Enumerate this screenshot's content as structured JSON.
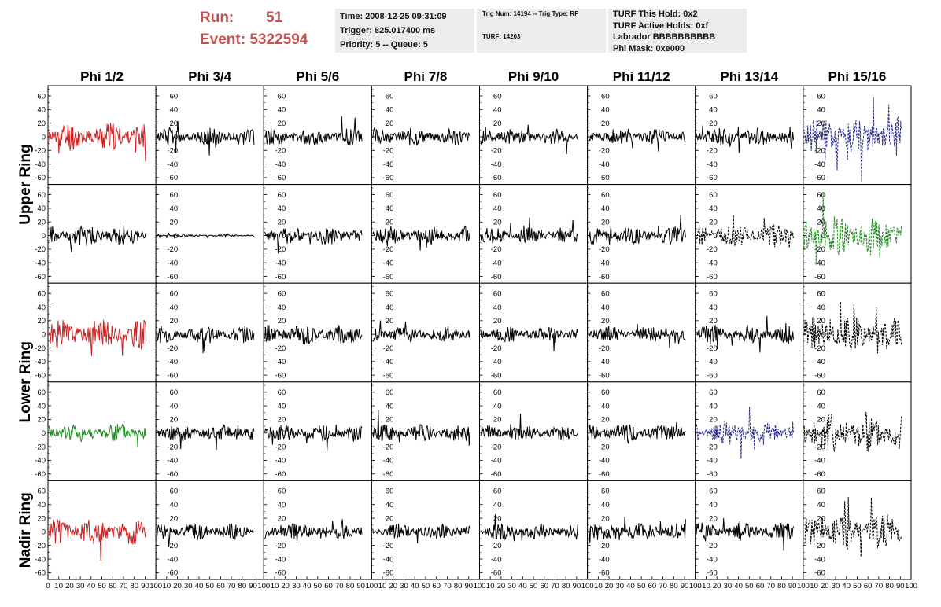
{
  "header": {
    "run_label": "Run:",
    "run_value": "51",
    "event_label": "Event:",
    "event_value": "5322594"
  },
  "info": {
    "time": "Time: 2008-12-25 09:31:09",
    "trigger": "Trigger: 825.017400 ms",
    "priority": "Priority: 5 -- Queue: 5",
    "trig_num": "Trig Num: 14194 -- Trig Type: RF",
    "turf": "TURF: 14203",
    "turf_hold": "TURF This Hold: 0x2",
    "turf_active": "TURF Active Holds: 0xf",
    "labrador": "Labrador BBBBBBBBBB",
    "phi_mask": "Phi Mask: 0xe000"
  },
  "colors": {
    "red": "#cc2222",
    "green": "#228b22",
    "blue": "#2a2a8a",
    "black": "#000000",
    "header_red": "#c85050",
    "box_gray": "#ececec"
  },
  "chart_data": {
    "type": "line",
    "columns": [
      "Phi 1/2",
      "Phi 3/4",
      "Phi 5/6",
      "Phi 7/8",
      "Phi 9/10",
      "Phi 11/12",
      "Phi 13/14",
      "Phi 15/16"
    ],
    "row_labels": [
      "Upper Ring",
      "Lower Ring",
      "Nadir Ring"
    ],
    "ylim": [
      -70,
      75
    ],
    "yticks": [
      -60,
      -40,
      -20,
      0,
      20,
      40,
      60
    ],
    "xlim": [
      0,
      100
    ],
    "xticks": [
      0,
      10,
      20,
      30,
      40,
      50,
      60,
      70,
      80,
      90,
      100
    ],
    "panels": [
      [
        {
          "color": "red",
          "style": "solid",
          "amp": 22,
          "seed": 11
        },
        {
          "color": "black",
          "style": "solid",
          "amp": 14,
          "seed": 12
        },
        {
          "color": "black",
          "style": "solid",
          "amp": 13,
          "seed": 13
        },
        {
          "color": "black",
          "style": "solid",
          "amp": 14,
          "seed": 14
        },
        {
          "color": "black",
          "style": "solid",
          "amp": 12,
          "seed": 15
        },
        {
          "color": "black",
          "style": "solid",
          "amp": 12,
          "seed": 16
        },
        {
          "color": "black",
          "style": "solid",
          "amp": 14,
          "seed": 17
        },
        {
          "color": "blue",
          "style": "dashed",
          "amp": 30,
          "seed": 18
        }
      ],
      [
        {
          "color": "black",
          "style": "solid",
          "amp": 16,
          "seed": 21
        },
        {
          "color": "black",
          "style": "solid",
          "amp": 2,
          "seed": 22
        },
        {
          "color": "black",
          "style": "solid",
          "amp": 14,
          "seed": 23
        },
        {
          "color": "black",
          "style": "solid",
          "amp": 14,
          "seed": 24
        },
        {
          "color": "black",
          "style": "solid",
          "amp": 13,
          "seed": 25
        },
        {
          "color": "black",
          "style": "solid",
          "amp": 14,
          "seed": 26
        },
        {
          "color": "black",
          "style": "dashed",
          "amp": 18,
          "seed": 27
        },
        {
          "color": "green",
          "style": "dashed",
          "amp": 32,
          "seed": 28
        }
      ],
      [
        {
          "color": "red",
          "style": "solid",
          "amp": 22,
          "seed": 31
        },
        {
          "color": "black",
          "style": "solid",
          "amp": 13,
          "seed": 32
        },
        {
          "color": "black",
          "style": "solid",
          "amp": 16,
          "seed": 33
        },
        {
          "color": "black",
          "style": "solid",
          "amp": 13,
          "seed": 34
        },
        {
          "color": "black",
          "style": "solid",
          "amp": 12,
          "seed": 35
        },
        {
          "color": "black",
          "style": "solid",
          "amp": 12,
          "seed": 36
        },
        {
          "color": "black",
          "style": "solid",
          "amp": 15,
          "seed": 37
        },
        {
          "color": "black",
          "style": "dashed",
          "amp": 28,
          "seed": 38
        }
      ],
      [
        {
          "color": "green",
          "style": "solid",
          "amp": 16,
          "seed": 41
        },
        {
          "color": "black",
          "style": "solid",
          "amp": 14,
          "seed": 42
        },
        {
          "color": "black",
          "style": "solid",
          "amp": 13,
          "seed": 43
        },
        {
          "color": "black",
          "style": "solid",
          "amp": 14,
          "seed": 44
        },
        {
          "color": "black",
          "style": "solid",
          "amp": 12,
          "seed": 45
        },
        {
          "color": "black",
          "style": "solid",
          "amp": 14,
          "seed": 46
        },
        {
          "color": "blue",
          "style": "dashed",
          "amp": 18,
          "seed": 47
        },
        {
          "color": "black",
          "style": "dashed",
          "amp": 32,
          "seed": 48
        }
      ],
      [
        {
          "color": "red",
          "style": "solid",
          "amp": 20,
          "seed": 51
        },
        {
          "color": "black",
          "style": "solid",
          "amp": 13,
          "seed": 52
        },
        {
          "color": "black",
          "style": "solid",
          "amp": 13,
          "seed": 53
        },
        {
          "color": "black",
          "style": "solid",
          "amp": 12,
          "seed": 54
        },
        {
          "color": "black",
          "style": "solid",
          "amp": 12,
          "seed": 55
        },
        {
          "color": "black",
          "style": "solid",
          "amp": 14,
          "seed": 56
        },
        {
          "color": "black",
          "style": "solid",
          "amp": 14,
          "seed": 57
        },
        {
          "color": "black",
          "style": "dashed",
          "amp": 28,
          "seed": 58
        }
      ]
    ]
  }
}
